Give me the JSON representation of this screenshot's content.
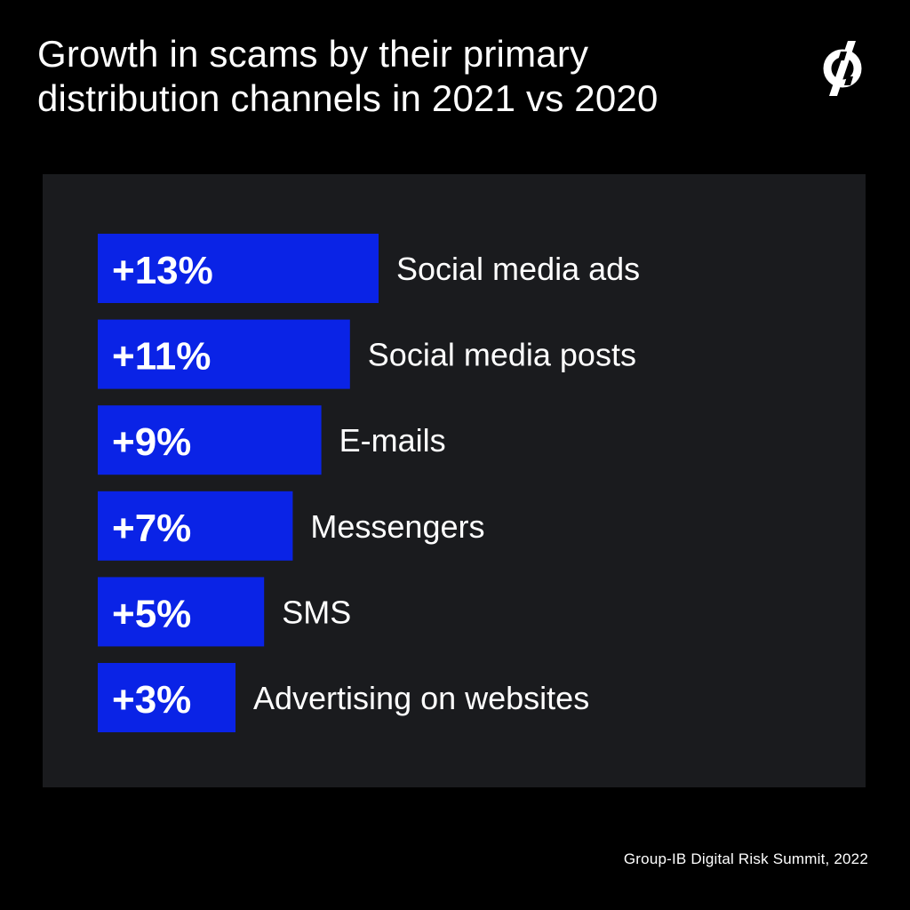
{
  "title_lines": [
    "Growth in scams by their primary",
    "distribution channels in 2021 vs 2020"
  ],
  "logo": {
    "icon": "group-ib-logo-icon"
  },
  "source": "Group-IB Digital Risk Summit, 2022",
  "colors": {
    "background": "#000000",
    "panel": "#1a1b1e",
    "bar": "#0a23e6",
    "text": "#ffffff"
  },
  "chart_data": {
    "type": "bar",
    "orientation": "horizontal",
    "title": "Growth in scams by their primary distribution channels in 2021 vs 2020",
    "unit": "%",
    "categories": [
      "Social media ads",
      "Social media posts",
      "E-mails",
      "Messengers",
      "SMS",
      "Advertising on websites"
    ],
    "values": [
      13,
      11,
      9,
      7,
      5,
      3
    ],
    "value_labels": [
      "+13%",
      "+11%",
      "+9%",
      "+7%",
      "+5%",
      "+3%"
    ],
    "grid": false,
    "legend": "none"
  }
}
